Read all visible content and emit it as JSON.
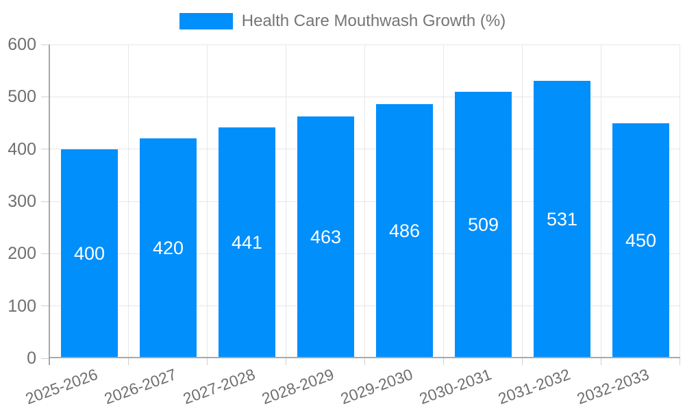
{
  "legend": {
    "label": "Health Care Mouthwash Growth (%)"
  },
  "colors": {
    "bar": "#008FFB",
    "grid": "#e7e7e7",
    "axis": "#a8a8a8",
    "tick": "#cfcfcf",
    "text": "#6f6f6f",
    "legend_text": "#757575",
    "bar_label": "#ffffff",
    "background": "#ffffff"
  },
  "chart_data": {
    "type": "bar",
    "title": "",
    "xlabel": "",
    "ylabel": "",
    "categories": [
      "2025-2026",
      "2026-2027",
      "2027-2028",
      "2028-2029",
      "2029-2030",
      "2030-2031",
      "2031-2032",
      "2032-2033"
    ],
    "series": [
      {
        "name": "Health Care Mouthwash Growth (%)",
        "values": [
          400,
          420,
          441,
          463,
          486,
          509,
          531,
          450
        ]
      }
    ],
    "data_labels": [
      "400",
      "420",
      "441",
      "463",
      "486",
      "509",
      "531",
      "450"
    ],
    "ylim": [
      0,
      600
    ],
    "yticks": [
      0,
      100,
      200,
      300,
      400,
      500,
      600
    ],
    "grid": true,
    "legend_position": "top",
    "x_label_rotation_deg": -20
  }
}
